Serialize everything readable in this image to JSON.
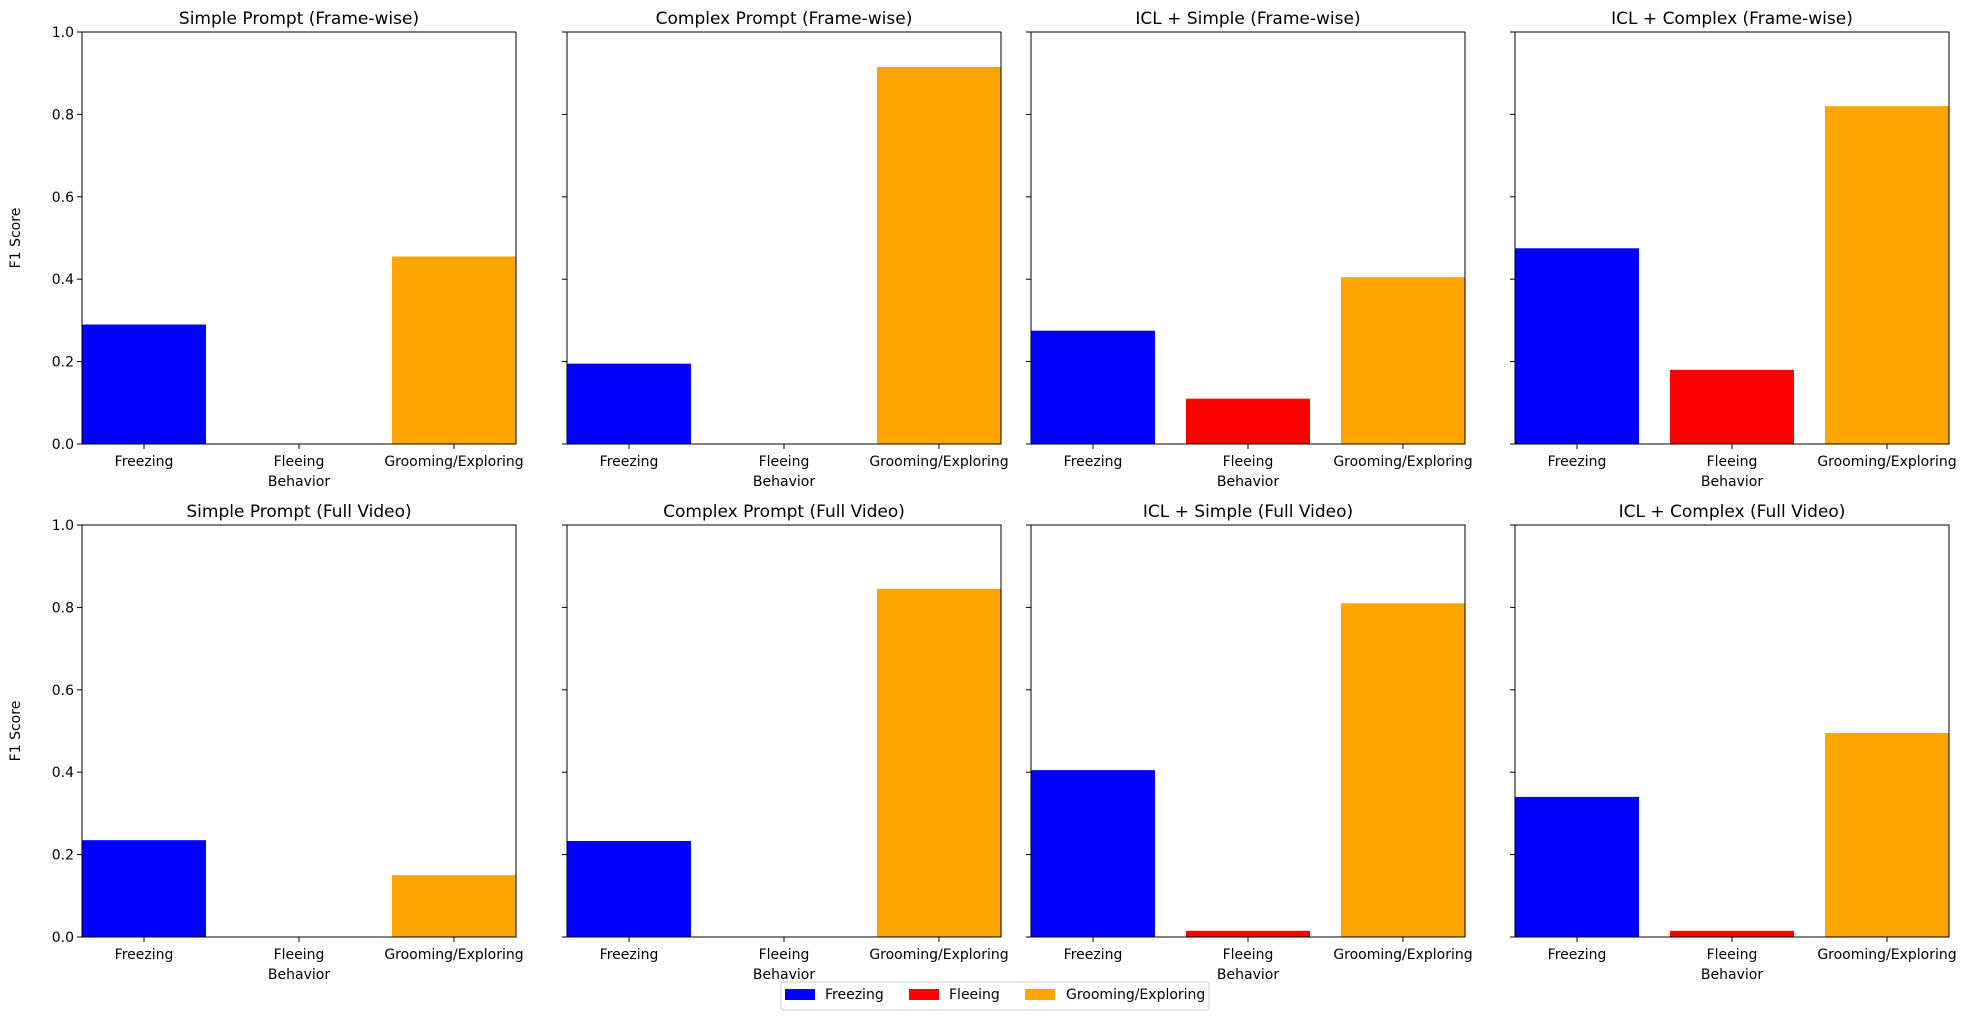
{
  "legend": {
    "placement": "bottom-center",
    "entries": [
      {
        "label": "Freezing",
        "color": "#0000ff"
      },
      {
        "label": "Fleeing",
        "color": "#ff0000"
      },
      {
        "label": "Grooming/Exploring",
        "color": "#ffa500"
      }
    ]
  },
  "chart_data": [
    {
      "type": "bar",
      "title": "Simple Prompt (Frame-wise)",
      "categories": [
        "Freezing",
        "Fleeing",
        "Grooming/Exploring"
      ],
      "values": [
        0.29,
        0.0,
        0.455
      ],
      "colors": [
        "#0000ff",
        "#ff0000",
        "#ffa500"
      ],
      "xlabel": "Behavior",
      "ylabel": "F1 Score",
      "ylim": [
        0,
        1
      ],
      "yticks": [
        "0.0",
        "0.2",
        "0.4",
        "0.6",
        "0.8",
        "1.0"
      ],
      "grid": false
    },
    {
      "type": "bar",
      "title": "Complex Prompt (Frame-wise)",
      "categories": [
        "Freezing",
        "Fleeing",
        "Grooming/Exploring"
      ],
      "values": [
        0.195,
        0.0,
        0.915
      ],
      "colors": [
        "#0000ff",
        "#ff0000",
        "#ffa500"
      ],
      "xlabel": "Behavior",
      "ylabel": "",
      "ylim": [
        0,
        1
      ],
      "yticks": [],
      "grid": false
    },
    {
      "type": "bar",
      "title": "ICL + Simple (Frame-wise)",
      "categories": [
        "Freezing",
        "Fleeing",
        "Grooming/Exploring"
      ],
      "values": [
        0.275,
        0.11,
        0.405
      ],
      "colors": [
        "#0000ff",
        "#ff0000",
        "#ffa500"
      ],
      "xlabel": "Behavior",
      "ylabel": "",
      "ylim": [
        0,
        1
      ],
      "yticks": [],
      "grid": false
    },
    {
      "type": "bar",
      "title": "ICL + Complex (Frame-wise)",
      "categories": [
        "Freezing",
        "Fleeing",
        "Grooming/Exploring"
      ],
      "values": [
        0.475,
        0.18,
        0.82
      ],
      "colors": [
        "#0000ff",
        "#ff0000",
        "#ffa500"
      ],
      "xlabel": "Behavior",
      "ylabel": "",
      "ylim": [
        0,
        1
      ],
      "yticks": [],
      "grid": false
    },
    {
      "type": "bar",
      "title": "Simple Prompt (Full Video)",
      "categories": [
        "Freezing",
        "Fleeing",
        "Grooming/Exploring"
      ],
      "values": [
        0.235,
        0.0,
        0.15
      ],
      "colors": [
        "#0000ff",
        "#ff0000",
        "#ffa500"
      ],
      "xlabel": "Behavior",
      "ylabel": "F1 Score",
      "ylim": [
        0,
        1
      ],
      "yticks": [
        "0.0",
        "0.2",
        "0.4",
        "0.6",
        "0.8",
        "1.0"
      ],
      "grid": false
    },
    {
      "type": "bar",
      "title": "Complex Prompt (Full Video)",
      "categories": [
        "Freezing",
        "Fleeing",
        "Grooming/Exploring"
      ],
      "values": [
        0.233,
        0.0,
        0.845
      ],
      "colors": [
        "#0000ff",
        "#ff0000",
        "#ffa500"
      ],
      "xlabel": "Behavior",
      "ylabel": "",
      "ylim": [
        0,
        1
      ],
      "yticks": [],
      "grid": false
    },
    {
      "type": "bar",
      "title": "ICL + Simple (Full Video)",
      "categories": [
        "Freezing",
        "Fleeing",
        "Grooming/Exploring"
      ],
      "values": [
        0.405,
        0.015,
        0.81
      ],
      "colors": [
        "#0000ff",
        "#ff0000",
        "#ffa500"
      ],
      "xlabel": "Behavior",
      "ylabel": "",
      "ylim": [
        0,
        1
      ],
      "yticks": [],
      "grid": false
    },
    {
      "type": "bar",
      "title": "ICL + Complex (Full Video)",
      "categories": [
        "Freezing",
        "Fleeing",
        "Grooming/Exploring"
      ],
      "values": [
        0.34,
        0.015,
        0.495
      ],
      "colors": [
        "#0000ff",
        "#ff0000",
        "#ffa500"
      ],
      "xlabel": "Behavior",
      "ylabel": "",
      "ylim": [
        0,
        1
      ],
      "yticks": [],
      "grid": false
    }
  ]
}
